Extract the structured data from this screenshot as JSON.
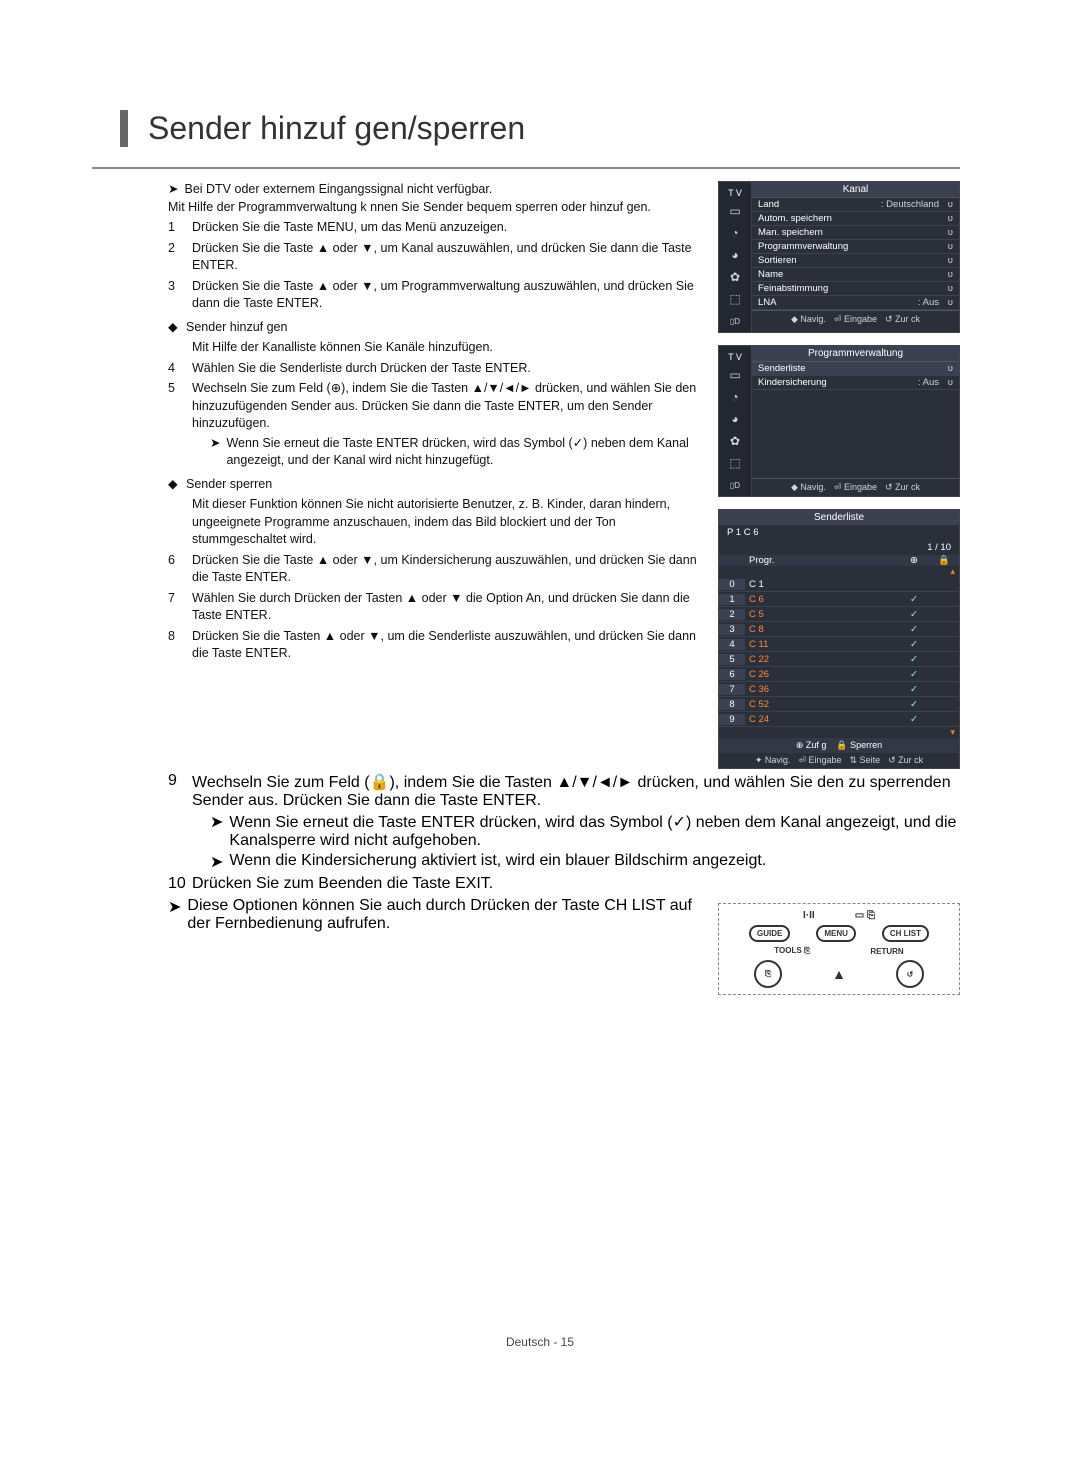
{
  "title": "Sender hinzuf gen/sperren",
  "note_top": "Bei DTV oder externem Eingangssignal nicht verfügbar.",
  "intro": "Mit Hilfe der Programmverwaltung k nnen Sie Sender bequem sperren oder hinzuf gen.",
  "steps": {
    "s1": "Drücken Sie die Taste MENU, um das Menü anzuzeigen.",
    "s2": "Drücken Sie die Taste ▲ oder ▼, um Kanal  auszuwählen, und drücken Sie dann die Taste ENTER.",
    "s3": "Drücken Sie die Taste ▲ oder ▼, um Programmverwaltung auszuwählen, und drücken Sie dann die Taste ENTER.",
    "s4": "Wählen Sie die Senderliste  durch Drücken der Taste ENTER.",
    "s5": "Wechseln Sie zum Feld (⊕), indem Sie die Tasten ▲/▼/◄/► drücken, und wählen Sie den hinzuzufügenden Sender aus. Drücken Sie dann die Taste ENTER, um den Sender hinzuzufügen.",
    "s5_note": "Wenn Sie erneut die Taste ENTER drücken, wird das Symbol (✓) neben dem Kanal angezeigt, und der Kanal wird nicht hinzugefügt.",
    "s6": "Drücken Sie die Taste ▲ oder ▼, um Kindersicherung   auszuwählen, und drücken Sie dann die Taste ENTER.",
    "s7": "Wählen Sie durch Drücken der Tasten ▲ oder ▼ die Option An, und drücken Sie dann die Taste ENTER.",
    "s8": "Drücken Sie die Tasten ▲ oder ▼, um die Senderliste  auszuwählen, und drücken Sie dann die Taste ENTER.",
    "s9": "Wechseln Sie zum Feld (🔒), indem Sie die Tasten ▲/▼/◄/► drücken, und wählen Sie den zu sperrenden Sender aus. Drücken Sie dann die Taste ENTER.",
    "s9_note1": "Wenn Sie erneut die Taste ENTER drücken, wird das Symbol (✓) neben dem Kanal angezeigt, und die Kanalsperre wird nicht aufgehoben.",
    "s9_note2": "Wenn die Kindersicherung aktiviert ist, wird ein blauer Bildschirm angezeigt.",
    "s10": "Drücken Sie zum Beenden die Taste EXIT.",
    "final_note": "Diese Optionen können Sie auch durch Drücken der Taste CH LIST auf der Fernbedienung aufrufen."
  },
  "diamond1": "Sender hinzuf gen",
  "diamond1_sub": "Mit Hilfe der Kanalliste können Sie Kanäle hinzufügen.",
  "diamond2": "Sender sperren",
  "diamond2_sub": "Mit dieser Funktion können Sie nicht autorisierte Benutzer, z. B. Kinder, daran hindern, ungeeignete Programme anzuschauen, indem das Bild blockiert und der Ton stummgeschaltet wird.",
  "osd1": {
    "tv": "T V",
    "header": "Kanal",
    "rows": [
      {
        "lbl": "Land",
        "val": ": Deutschland"
      },
      {
        "lbl": "Autom. speichern",
        "val": ""
      },
      {
        "lbl": "Man. speichern",
        "val": ""
      },
      {
        "lbl": "Programmverwaltung",
        "val": ""
      },
      {
        "lbl": "Sortieren",
        "val": ""
      },
      {
        "lbl": "Name",
        "val": ""
      },
      {
        "lbl": "Feinabstimmung",
        "val": ""
      },
      {
        "lbl": "LNA",
        "val": ": Aus"
      }
    ],
    "foot": [
      "◆ Navig.",
      "⏎ Eingabe",
      "↺ Zur ck"
    ]
  },
  "osd2": {
    "tv": "T V",
    "header": "Programmverwaltung",
    "rows": [
      {
        "lbl": "Senderliste",
        "val": "",
        "hl": true
      },
      {
        "lbl": "Kindersicherung",
        "val": ": Aus"
      }
    ],
    "foot": [
      "◆ Navig.",
      "⏎ Eingabe",
      "↺ Zur ck"
    ]
  },
  "senderliste": {
    "header": "Senderliste",
    "info_left": "P 1   C 6",
    "info_right": "1 / 10",
    "col_progr": "Progr.",
    "col_add": "⊕",
    "col_lock": "🔒",
    "rows": [
      {
        "n": "0",
        "ch": "C 1",
        "add": "",
        "lock": ""
      },
      {
        "n": "1",
        "ch": "C 6",
        "add": "✓",
        "lock": ""
      },
      {
        "n": "2",
        "ch": "C 5",
        "add": "✓",
        "lock": ""
      },
      {
        "n": "3",
        "ch": "C 8",
        "add": "✓",
        "lock": ""
      },
      {
        "n": "4",
        "ch": "C 11",
        "add": "✓",
        "lock": ""
      },
      {
        "n": "5",
        "ch": "C 22",
        "add": "✓",
        "lock": ""
      },
      {
        "n": "6",
        "ch": "C 26",
        "add": "✓",
        "lock": ""
      },
      {
        "n": "7",
        "ch": "C 36",
        "add": "✓",
        "lock": ""
      },
      {
        "n": "8",
        "ch": "C 52",
        "add": "✓",
        "lock": ""
      },
      {
        "n": "9",
        "ch": "C 24",
        "add": "✓",
        "lock": ""
      }
    ],
    "mark_top": "▴",
    "mark_bot": "▾",
    "legend_add": "⊕ Zuf g",
    "legend_lock": "🔒 Sperren",
    "foot": [
      "✦ Navig.",
      "⏎ Eingabe",
      "⇅ Seite",
      "↺ Zur ck"
    ]
  },
  "remote": {
    "guide": "GUIDE",
    "menu": "MENU",
    "chlist": "CH LIST",
    "tools": "TOOLS ⎘",
    "return": "RETURN"
  },
  "footer": "Deutsch - 15"
}
